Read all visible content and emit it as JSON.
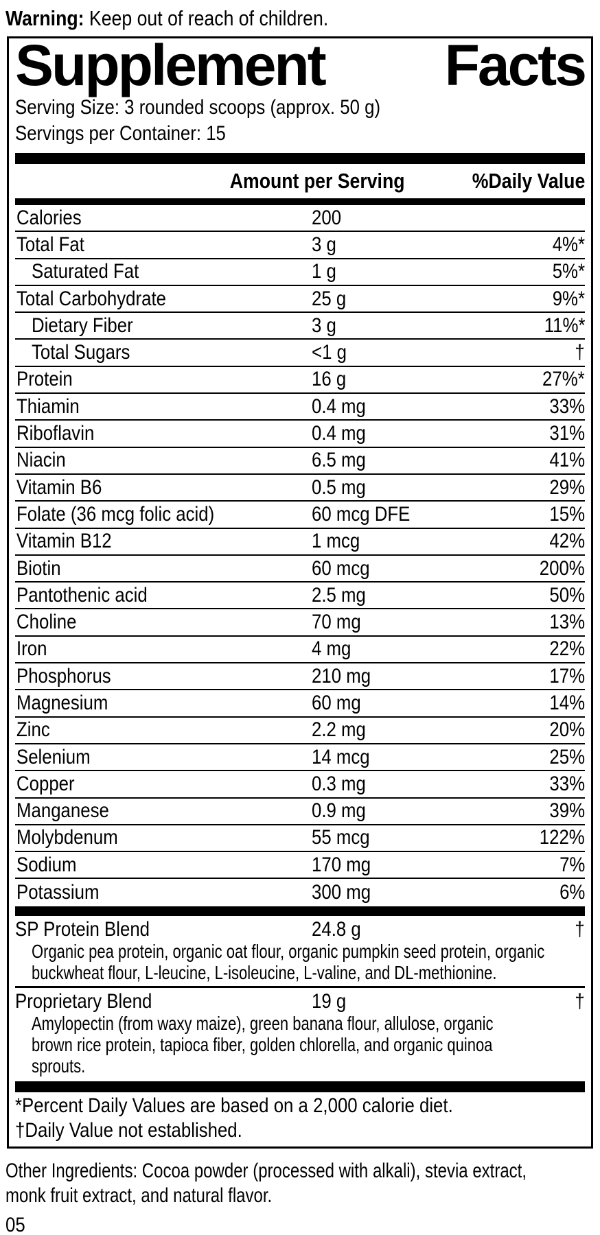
{
  "colors": {
    "text": "#000000",
    "background": "#ffffff"
  },
  "warning": {
    "label": "Warning:",
    "text": " Keep out of reach of children."
  },
  "panel": {
    "title_left": "Supplement",
    "title_right": "Facts",
    "serving_size": "Serving Size: 3 rounded scoops (approx. 50 g)",
    "servings_per_container": "Servings per Container: 15",
    "columns": {
      "amount": "Amount per Serving",
      "daily_value": "%Daily Value"
    },
    "rows": [
      {
        "label": "Calories",
        "amount": "200",
        "dv": "",
        "indent": false
      },
      {
        "label": "Total Fat",
        "amount": "3 g",
        "dv": "4%*",
        "indent": false
      },
      {
        "label": "Saturated Fat",
        "amount": "1 g",
        "dv": "5%*",
        "indent": true
      },
      {
        "label": "Total Carbohydrate",
        "amount": "25 g",
        "dv": "9%*",
        "indent": false
      },
      {
        "label": "Dietary Fiber",
        "amount": "3 g",
        "dv": "11%*",
        "indent": true
      },
      {
        "label": "Total Sugars",
        "amount": "<1 g",
        "dv": "†",
        "indent": true
      },
      {
        "label": "Protein",
        "amount": "16 g",
        "dv": "27%*",
        "indent": false
      },
      {
        "label": "Thiamin",
        "amount": "0.4 mg",
        "dv": "33%",
        "indent": false
      },
      {
        "label": "Riboflavin",
        "amount": "0.4 mg",
        "dv": "31%",
        "indent": false
      },
      {
        "label": "Niacin",
        "amount": "6.5 mg",
        "dv": "41%",
        "indent": false
      },
      {
        "label": "Vitamin B6",
        "amount": "0.5 mg",
        "dv": "29%",
        "indent": false
      },
      {
        "label": "Folate (36 mcg folic acid)",
        "amount": "60 mcg DFE",
        "dv": "15%",
        "indent": false
      },
      {
        "label": "Vitamin B12",
        "amount": "1 mcg",
        "dv": "42%",
        "indent": false
      },
      {
        "label": "Biotin",
        "amount": "60 mcg",
        "dv": "200%",
        "indent": false
      },
      {
        "label": "Pantothenic acid",
        "amount": "2.5 mg",
        "dv": "50%",
        "indent": false
      },
      {
        "label": "Choline",
        "amount": "70 mg",
        "dv": "13%",
        "indent": false
      },
      {
        "label": "Iron",
        "amount": "4 mg",
        "dv": "22%",
        "indent": false
      },
      {
        "label": "Phosphorus",
        "amount": "210 mg",
        "dv": "17%",
        "indent": false
      },
      {
        "label": "Magnesium",
        "amount": "60 mg",
        "dv": "14%",
        "indent": false
      },
      {
        "label": "Zinc",
        "amount": "2.2 mg",
        "dv": "20%",
        "indent": false
      },
      {
        "label": "Selenium",
        "amount": "14 mcg",
        "dv": "25%",
        "indent": false
      },
      {
        "label": "Copper",
        "amount": "0.3 mg",
        "dv": "33%",
        "indent": false
      },
      {
        "label": "Manganese",
        "amount": "0.9 mg",
        "dv": "39%",
        "indent": false
      },
      {
        "label": "Molybdenum",
        "amount": "55 mcg",
        "dv": "122%",
        "indent": false
      },
      {
        "label": "Sodium",
        "amount": "170 mg",
        "dv": "7%",
        "indent": false
      },
      {
        "label": "Potassium",
        "amount": "300 mg",
        "dv": "6%",
        "indent": false
      }
    ],
    "blends": [
      {
        "label": "SP Protein Blend",
        "amount": "24.8 g",
        "dv": "†",
        "description_lines": [
          "Organic pea protein, organic oat flour, organic pumpkin seed protein, organic",
          "buckwheat flour, L-leucine, L-isoleucine, L-valine, and DL-methionine."
        ]
      },
      {
        "label": "Proprietary Blend",
        "amount": "19 g",
        "dv": "†",
        "description_lines": [
          "Amylopectin (from waxy maize), green banana flour, allulose, organic",
          "brown rice protein, tapioca fiber, golden chlorella, and organic quinoa",
          "sprouts."
        ]
      }
    ],
    "footnotes": [
      "*Percent Daily Values are based on a 2,000 calorie diet.",
      "†Daily Value not established."
    ]
  },
  "other_ingredients": {
    "lines": [
      "Other Ingredients: Cocoa powder (processed with alkali), stevia extract,",
      "monk fruit extract, and natural flavor."
    ]
  },
  "page_number": "05"
}
